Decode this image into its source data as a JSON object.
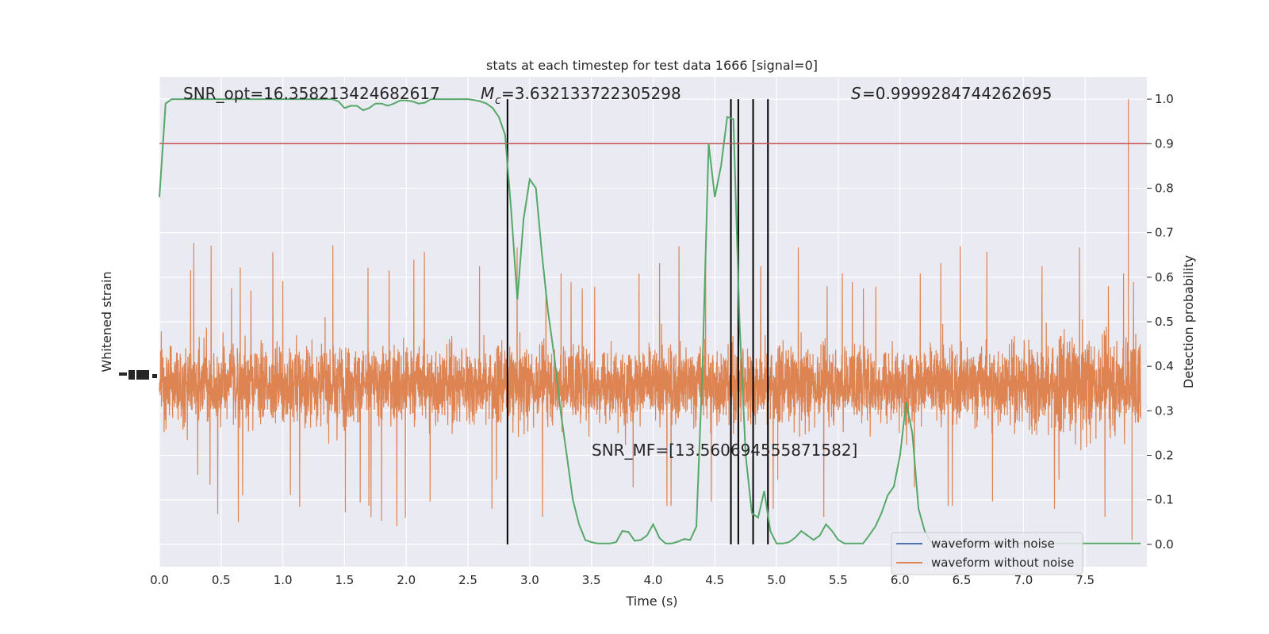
{
  "chart_data": {
    "type": "line",
    "title": "stats at each timestep for test data 1666 [signal=0]",
    "xlabel": "Time (s)",
    "ylabel_left": "Whitened strain",
    "ylabel_right": "Detection probability",
    "xlim": [
      0.0,
      8.0
    ],
    "ylim_right": [
      -0.05,
      1.05
    ],
    "x_ticks": [
      "0.0",
      "0.5",
      "1.0",
      "1.5",
      "2.0",
      "2.5",
      "3.0",
      "3.5",
      "4.0",
      "4.5",
      "5.0",
      "5.5",
      "6.0",
      "6.5",
      "7.0",
      "7.5"
    ],
    "y_ticks_right": [
      "0.0",
      "0.1",
      "0.2",
      "0.3",
      "0.4",
      "0.5",
      "0.6",
      "0.7",
      "0.8",
      "0.9",
      "1.0"
    ],
    "grid": true,
    "legend": {
      "placement": "lower right",
      "entries": [
        {
          "label": "waveform with noise",
          "color": "#4c72b0"
        },
        {
          "label": "waveform without noise",
          "color": "#dd8452"
        }
      ]
    },
    "annotations": {
      "snr_opt": "SNR_opt=16.358213424682617",
      "mc": "=3.632133722305298",
      "s": "=0.9999284744262695",
      "snr_mf": "SNR_MF=[13.560694555871582]"
    },
    "threshold": {
      "y": 0.9,
      "color": "#c44e52"
    },
    "vertical_lines_x": [
      2.82,
      4.63,
      4.69,
      4.81,
      4.93
    ],
    "detection_probability": {
      "name": "",
      "color": "#55a868",
      "x": [
        0.0,
        0.05,
        0.1,
        0.15,
        0.2,
        0.25,
        0.3,
        0.35,
        0.4,
        0.45,
        0.5,
        0.55,
        0.6,
        0.65,
        0.7,
        0.75,
        0.8,
        0.85,
        0.9,
        0.95,
        1.0,
        1.05,
        1.1,
        1.15,
        1.2,
        1.25,
        1.3,
        1.35,
        1.4,
        1.45,
        1.5,
        1.55,
        1.6,
        1.65,
        1.7,
        1.75,
        1.8,
        1.85,
        1.9,
        1.95,
        2.0,
        2.05,
        2.1,
        2.15,
        2.2,
        2.25,
        2.3,
        2.35,
        2.4,
        2.45,
        2.5,
        2.55,
        2.6,
        2.65,
        2.7,
        2.75,
        2.8,
        2.85,
        2.9,
        2.95,
        3.0,
        3.05,
        3.1,
        3.15,
        3.2,
        3.25,
        3.3,
        3.35,
        3.4,
        3.45,
        3.5,
        3.55,
        3.6,
        3.65,
        3.7,
        3.75,
        3.8,
        3.85,
        3.9,
        3.95,
        4.0,
        4.05,
        4.1,
        4.15,
        4.2,
        4.25,
        4.3,
        4.35,
        4.4,
        4.45,
        4.5,
        4.55,
        4.6,
        4.65,
        4.7,
        4.75,
        4.8,
        4.85,
        4.9,
        4.95,
        5.0,
        5.05,
        5.1,
        5.15,
        5.2,
        5.25,
        5.3,
        5.35,
        5.4,
        5.45,
        5.5,
        5.55,
        5.6,
        5.65,
        5.7,
        5.75,
        5.8,
        5.85,
        5.9,
        5.95,
        6.0,
        6.05,
        6.1,
        6.15,
        6.2,
        6.25,
        6.3,
        6.35,
        6.4,
        6.45,
        6.5,
        6.55,
        6.6,
        6.65,
        6.7,
        6.75,
        6.8,
        6.85,
        6.9,
        6.95,
        7.0,
        7.5,
        7.85,
        7.95
      ],
      "y": [
        0.78,
        0.99,
        1.0,
        1.0,
        1.0,
        1.0,
        1.0,
        1.0,
        1.0,
        1.0,
        1.0,
        1.0,
        1.0,
        1.0,
        1.0,
        1.0,
        1.0,
        1.0,
        1.0,
        1.0,
        1.0,
        1.0,
        1.0,
        1.0,
        1.0,
        1.0,
        1.0,
        1.0,
        1.0,
        0.995,
        0.98,
        0.985,
        0.985,
        0.975,
        0.98,
        0.99,
        0.99,
        0.985,
        0.99,
        0.997,
        0.997,
        0.995,
        0.99,
        0.992,
        1.0,
        1.0,
        1.0,
        1.0,
        1.0,
        1.0,
        1.0,
        0.998,
        0.995,
        0.99,
        0.98,
        0.96,
        0.92,
        0.75,
        0.55,
        0.73,
        0.82,
        0.8,
        0.65,
        0.52,
        0.42,
        0.3,
        0.2,
        0.1,
        0.045,
        0.01,
        0.005,
        0.002,
        0.002,
        0.002,
        0.005,
        0.03,
        0.028,
        0.008,
        0.01,
        0.02,
        0.045,
        0.015,
        0.002,
        0.002,
        0.006,
        0.012,
        0.01,
        0.04,
        0.4,
        0.9,
        0.78,
        0.85,
        0.96,
        0.955,
        0.5,
        0.2,
        0.07,
        0.06,
        0.12,
        0.03,
        0.002,
        0.002,
        0.005,
        0.015,
        0.03,
        0.02,
        0.01,
        0.02,
        0.045,
        0.03,
        0.01,
        0.002,
        0.002,
        0.002,
        0.002,
        0.02,
        0.04,
        0.07,
        0.11,
        0.13,
        0.2,
        0.32,
        0.25,
        0.08,
        0.03,
        0.005,
        0.002,
        0.002,
        0.002,
        0.002,
        0.002,
        0.002,
        0.002,
        0.002,
        0.002,
        0.002,
        0.002,
        0.002,
        0.002,
        0.002,
        0.002,
        0.002,
        0.002,
        0.002
      ]
    },
    "strain_without_noise": {
      "color": "#dd8452",
      "center_right_units": 0.36,
      "band_core_right_units": 0.11,
      "typical_peak_right_units": 0.2,
      "max_spike": {
        "x": 7.85,
        "y_right_units": 1.0
      },
      "min_spike": {
        "x": 7.88,
        "y_right_units": 0.01
      }
    }
  }
}
